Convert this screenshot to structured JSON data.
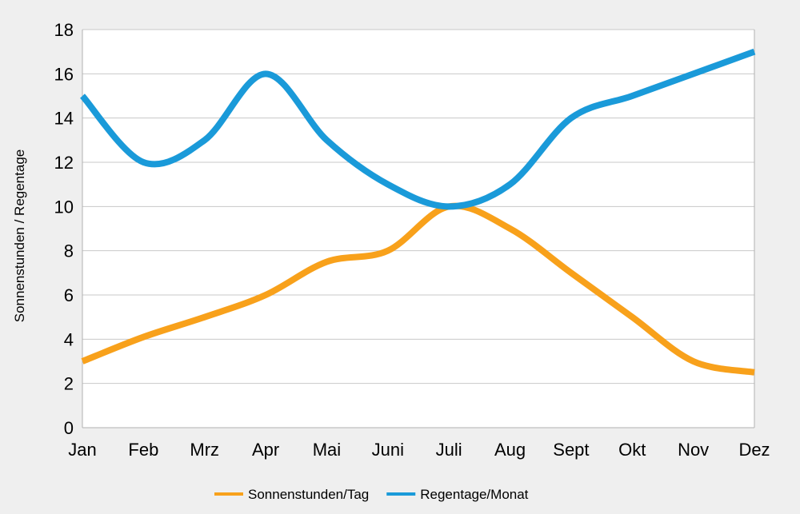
{
  "chart_data": {
    "type": "line",
    "title": "",
    "xlabel": "",
    "ylabel": "Sonnenstunden / Regentage",
    "categories": [
      "Jan",
      "Feb",
      "Mrz",
      "Apr",
      "Mai",
      "Juni",
      "Juli",
      "Aug",
      "Sept",
      "Okt",
      "Nov",
      "Dez"
    ],
    "ylim": [
      0,
      18
    ],
    "yticks": [
      0,
      2,
      4,
      6,
      8,
      10,
      12,
      14,
      16,
      18
    ],
    "grid": true,
    "legend_position": "bottom",
    "series": [
      {
        "name": "Sonnenstunden/Tag",
        "color": "#f8a11b",
        "values": [
          3,
          4.1,
          5,
          6,
          7.5,
          8,
          10,
          9,
          7,
          5,
          3,
          2.5
        ]
      },
      {
        "name": "Regentage/Monat",
        "color": "#1a9ad9",
        "values": [
          15,
          12,
          13,
          16,
          13,
          11,
          10,
          11,
          14,
          15,
          16,
          17
        ]
      }
    ]
  }
}
